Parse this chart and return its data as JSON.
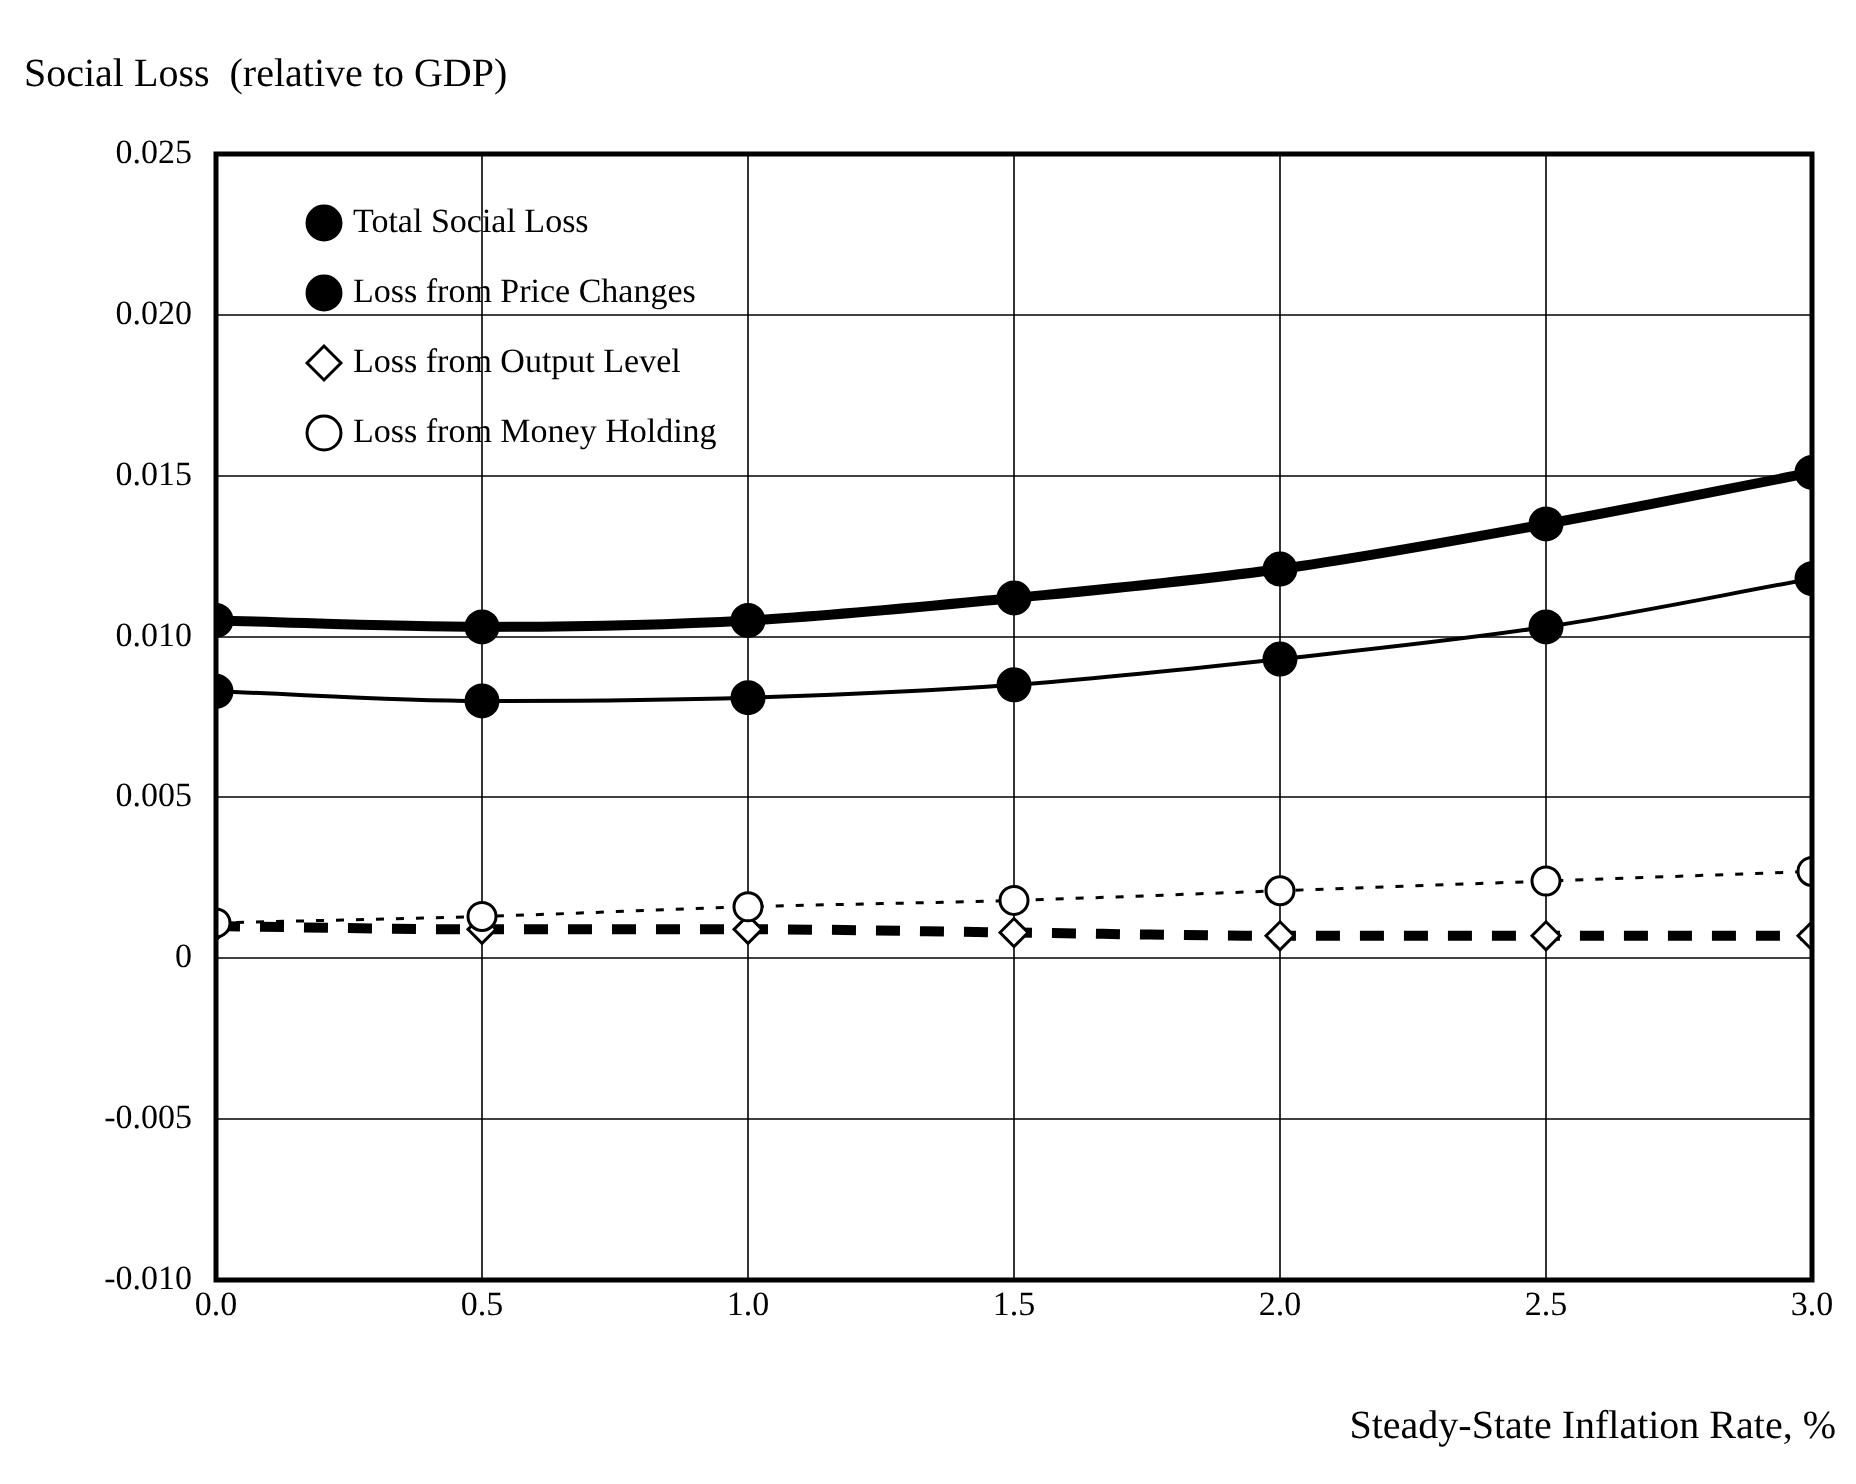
{
  "chart_data": {
    "type": "line",
    "ylabel": "Social Loss  (relative to GDP)",
    "xlabel": "Steady-State Inflation Rate, %",
    "x": [
      0,
      0.5,
      1.0,
      1.5,
      2.0,
      2.5,
      3.0
    ],
    "series": [
      {
        "name": "Total Social Loss",
        "color": "#000000",
        "marker": "circle",
        "line_style": "solid",
        "values": [
          0.0105,
          0.0103,
          0.0105,
          0.0112,
          0.0121,
          0.0135,
          0.0151
        ]
      },
      {
        "name": "Loss from Price Changes",
        "color": "#000000",
        "marker": "circle",
        "line_style": "solid",
        "values": [
          0.0083,
          0.008,
          0.0081,
          0.0085,
          0.0093,
          0.0103,
          0.0118
        ]
      },
      {
        "name": "Loss from Output Level",
        "color": "#000000",
        "marker": "diamond",
        "line_style": "dashed",
        "values": [
          0.001,
          0.0009,
          0.0009,
          0.0008,
          0.0007,
          0.0007,
          0.0007
        ]
      },
      {
        "name": "Loss from Money Holding",
        "color": "#000000",
        "marker": "circle",
        "line_style": "dotted",
        "values": [
          0.0011,
          0.0013,
          0.0016,
          0.0018,
          0.0021,
          0.0024,
          0.0027
        ]
      }
    ],
    "xlim": [
      0,
      3
    ],
    "xticks": [
      {
        "value": 0,
        "label": "0.0"
      },
      0.5,
      {
        "value": 1,
        "label": "1.0"
      },
      1.5,
      {
        "value": 2,
        "label": "2.0"
      },
      2.5,
      {
        "value": 3,
        "label": "3.0"
      }
    ],
    "ylim": [
      -0.01,
      0.025
    ],
    "yticks": [
      {
        "value": -0.01,
        "label": "-0.010"
      },
      -0.005,
      0,
      0.005,
      {
        "value": 0.01,
        "label": "0.010"
      },
      0.015,
      {
        "value": 0.02,
        "label": "0.020"
      },
      0.025
    ],
    "grid": true,
    "legend": "top left"
  }
}
